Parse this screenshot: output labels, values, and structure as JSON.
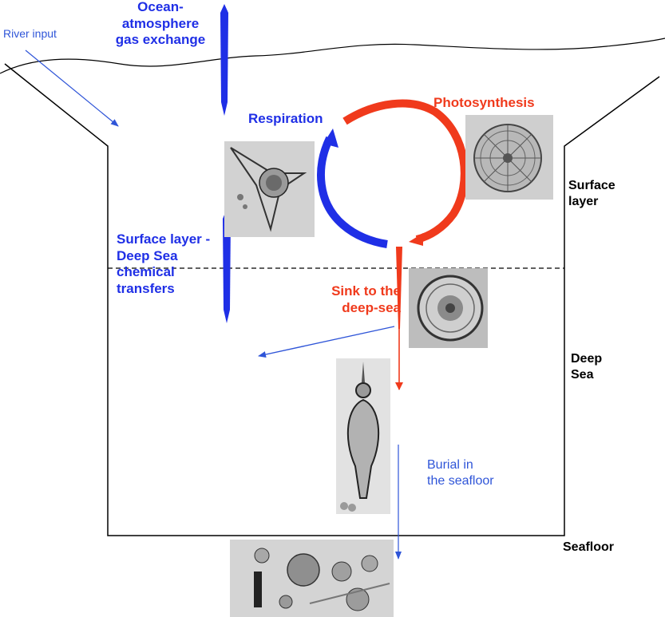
{
  "labels": {
    "river_input": "River input",
    "ocean_atmosphere": [
      "Ocean-",
      "atmosphere",
      "gas exchange"
    ],
    "respiration": "Respiration",
    "photosynthesis": "Photosynthesis",
    "surface_layer": [
      "Surface",
      "layer"
    ],
    "surface_deep_transfers": [
      "Surface layer -",
      "Deep Sea",
      "chemical",
      "transfers"
    ],
    "sink_deep_sea": [
      "Sink to the",
      "deep-sea"
    ],
    "deep_sea": [
      "Deep",
      "Sea"
    ],
    "burial": [
      "Burial in",
      "the seafloor"
    ],
    "seafloor": "Seafloor"
  },
  "colors": {
    "blue_process": "#1f2fe6",
    "red_process": "#f03a1c",
    "thin_blue_arrow": "#2f55d8",
    "outline": "#000000"
  },
  "images": [
    {
      "name": "radiolarian-micrograph",
      "depicts": "radiolarian"
    },
    {
      "name": "diatom-micrograph",
      "depicts": "diatom"
    },
    {
      "name": "centric-diatom-micrograph",
      "depicts": "centric diatom"
    },
    {
      "name": "elongated-radiolarian-micrograph",
      "depicts": "elongated radiolarian"
    },
    {
      "name": "seafloor-sediment-micrograph",
      "depicts": "seafloor sediment microfossils"
    }
  ]
}
